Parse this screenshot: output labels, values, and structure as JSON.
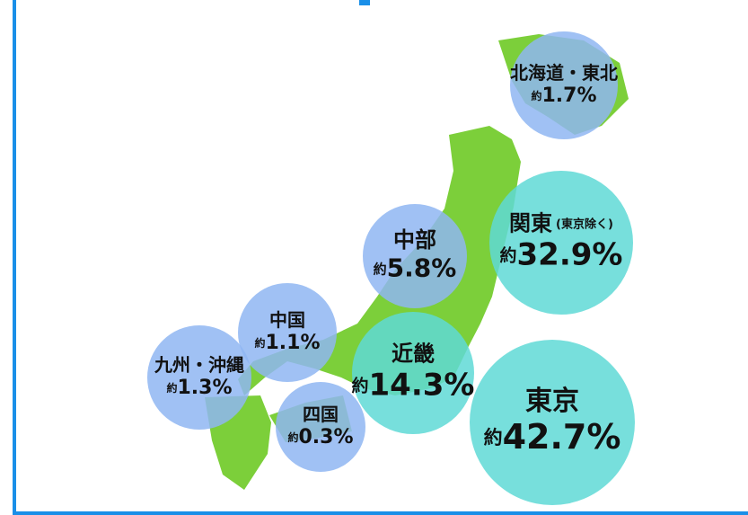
{
  "regions": [
    {
      "name": "北海道・東北",
      "prefix": "約",
      "value": "1.7%",
      "color": "#8fb6f2"
    },
    {
      "name": "関東",
      "note": "(東京除く)",
      "prefix": "約",
      "value": "32.9%",
      "color": "#5fd9d6"
    },
    {
      "name": "中部",
      "prefix": "約",
      "value": "5.8%",
      "color": "#8fb6f2"
    },
    {
      "name": "中国",
      "prefix": "約",
      "value": "1.1%",
      "color": "#8fb6f2"
    },
    {
      "name": "九州・沖縄",
      "prefix": "約",
      "value": "1.3%",
      "color": "#8fb6f2"
    },
    {
      "name": "近畿",
      "prefix": "約",
      "value": "14.3%",
      "color": "#5fd9d6"
    },
    {
      "name": "四国",
      "prefix": "約",
      "value": "0.3%",
      "color": "#8fb6f2"
    },
    {
      "name": "東京",
      "prefix": "約",
      "value": "42.7%",
      "color": "#5fd9d6"
    }
  ]
}
